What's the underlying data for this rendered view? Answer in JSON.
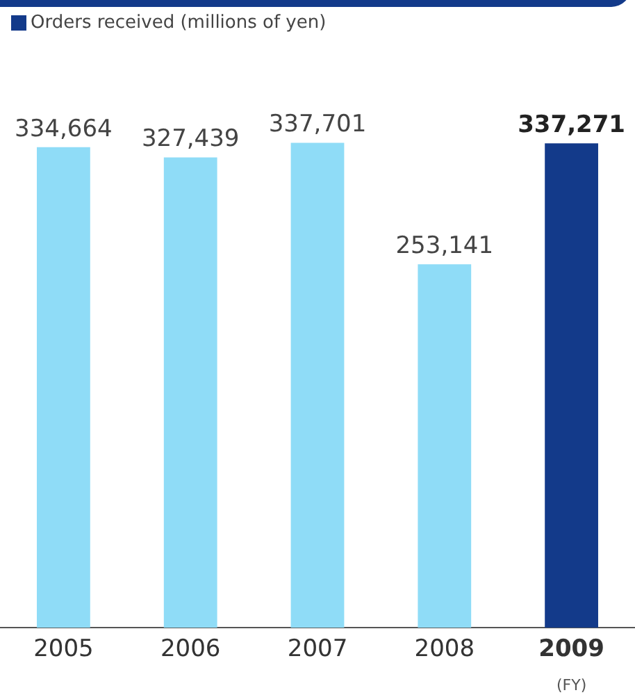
{
  "chart_data": {
    "type": "bar",
    "categories": [
      "2005",
      "2006",
      "2007",
      "2008",
      "2009"
    ],
    "series": [
      {
        "name": "Orders received (millions of yen)",
        "color": "#133a8a",
        "colors": [
          "#8fdcf7",
          "#8fdcf7",
          "#8fdcf7",
          "#8fdcf7",
          "#133a8a"
        ],
        "values": [
          334664,
          327439,
          337701,
          253141,
          337271
        ],
        "value_labels": [
          "334,664",
          "327,439",
          "337,701",
          "253,141",
          "337,271"
        ]
      }
    ],
    "legend": "top left",
    "grid": false,
    "annotations": [
      "(FY)"
    ]
  }
}
